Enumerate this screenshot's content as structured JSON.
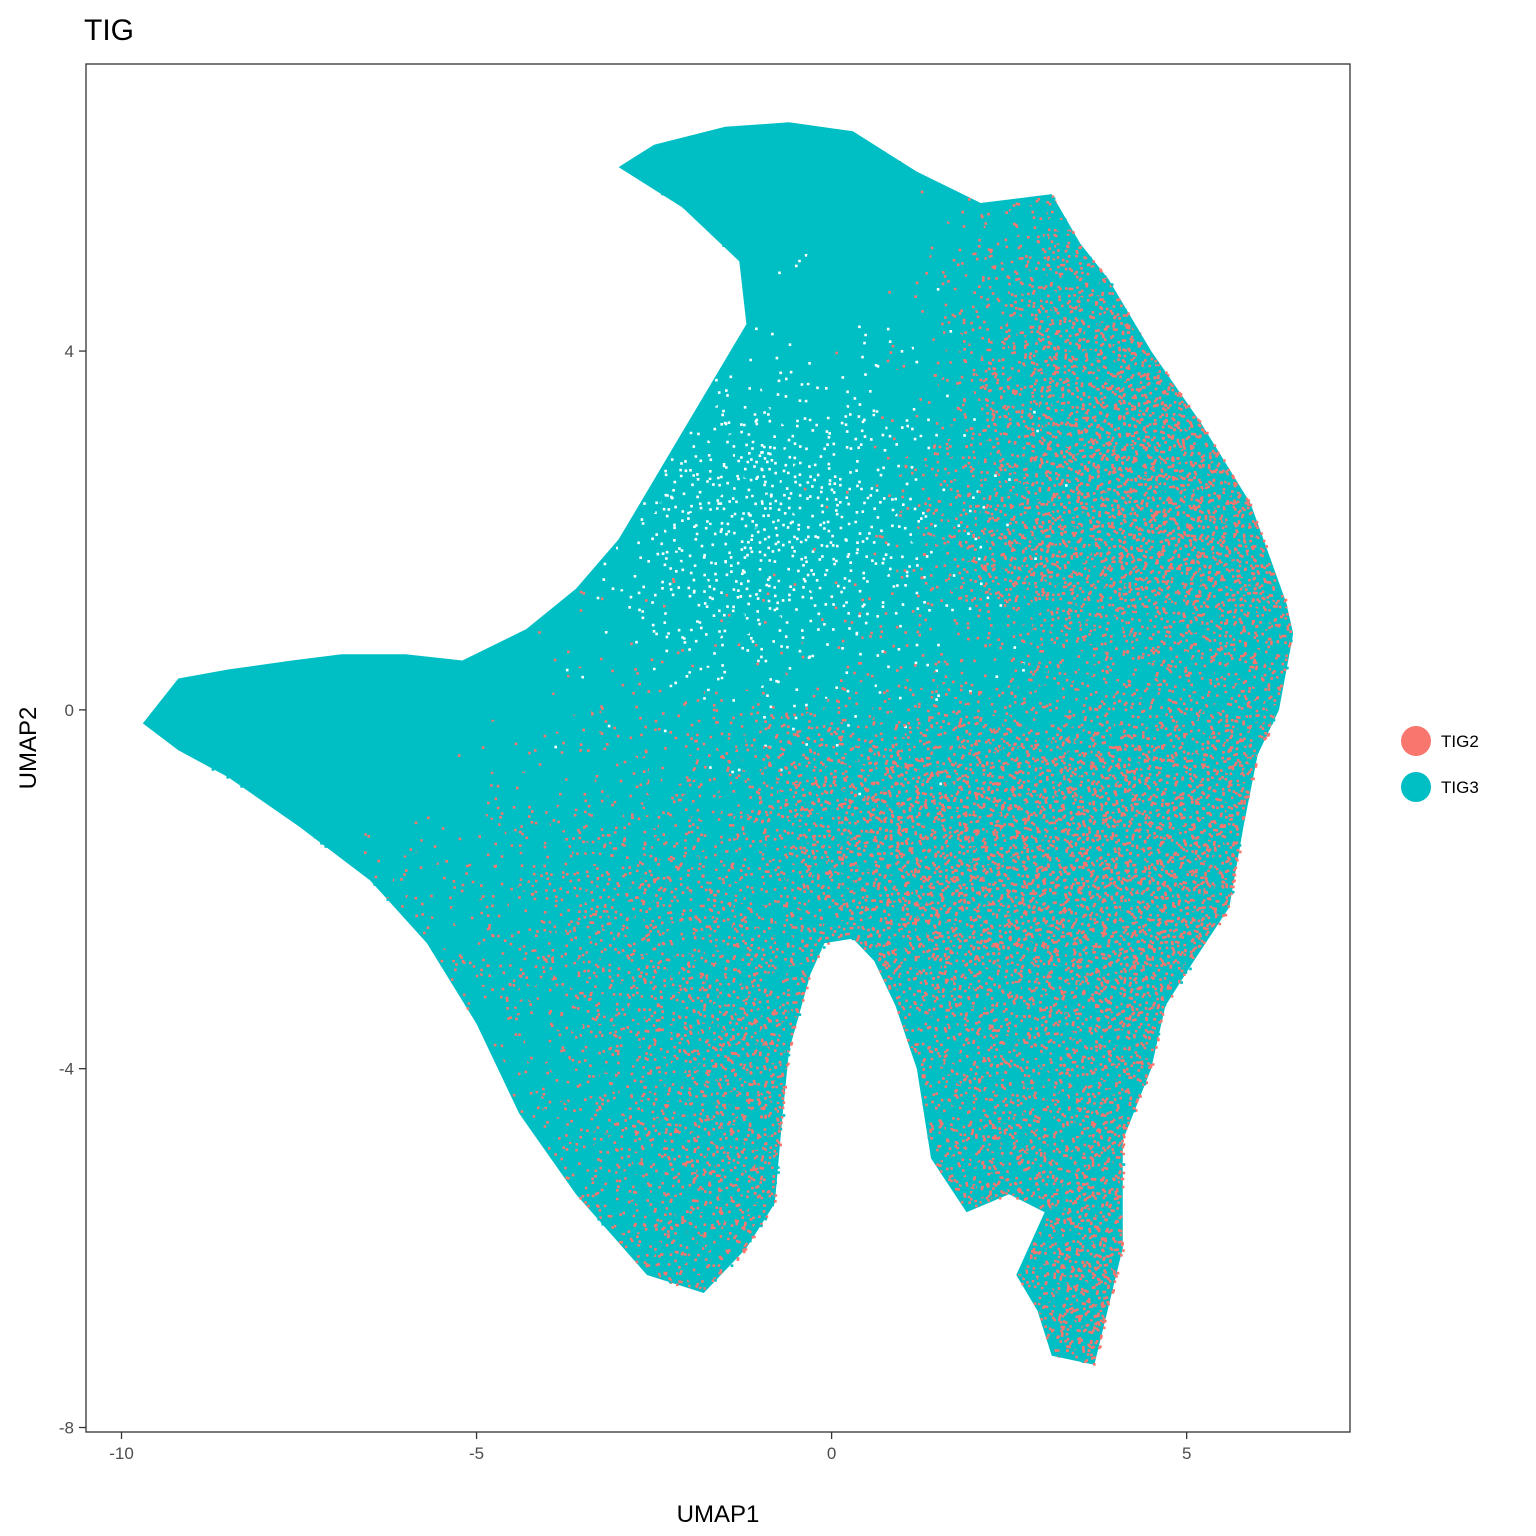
{
  "chart_data": {
    "type": "scatter",
    "title": "TIG",
    "xlabel": "UMAP1",
    "ylabel": "UMAP2",
    "xlim": [
      -10.5,
      7.3
    ],
    "ylim": [
      -8.05,
      7.2
    ],
    "x_ticks": [
      {
        "value": -10,
        "label": "-10"
      },
      {
        "value": -5,
        "label": "-5"
      },
      {
        "value": 0,
        "label": "0"
      },
      {
        "value": 5,
        "label": "5"
      }
    ],
    "y_ticks": [
      {
        "value": -8,
        "label": "-8"
      },
      {
        "value": -4,
        "label": "-4"
      },
      {
        "value": 0,
        "label": "0"
      },
      {
        "value": 4,
        "label": "4"
      }
    ],
    "grid": false,
    "legend_position": "right",
    "point_cloud_outline": [
      [
        -9.7,
        -0.15
      ],
      [
        -9.2,
        0.35
      ],
      [
        -8.5,
        0.45
      ],
      [
        -7.6,
        0.55
      ],
      [
        -6.9,
        0.62
      ],
      [
        -6.0,
        0.62
      ],
      [
        -5.2,
        0.55
      ],
      [
        -4.3,
        0.9
      ],
      [
        -3.6,
        1.35
      ],
      [
        -3.0,
        1.9
      ],
      [
        -2.4,
        2.7
      ],
      [
        -1.8,
        3.5
      ],
      [
        -1.2,
        4.3
      ],
      [
        -1.3,
        5.0
      ],
      [
        -2.1,
        5.6
      ],
      [
        -3.0,
        6.05
      ],
      [
        -2.5,
        6.3
      ],
      [
        -1.5,
        6.5
      ],
      [
        -0.6,
        6.55
      ],
      [
        0.3,
        6.45
      ],
      [
        1.2,
        6.0
      ],
      [
        2.1,
        5.65
      ],
      [
        3.1,
        5.75
      ],
      [
        3.5,
        5.2
      ],
      [
        3.9,
        4.8
      ],
      [
        4.5,
        4.0
      ],
      [
        5.2,
        3.2
      ],
      [
        5.9,
        2.3
      ],
      [
        6.4,
        1.2
      ],
      [
        6.5,
        0.85
      ],
      [
        6.3,
        0.0
      ],
      [
        6.0,
        -0.5
      ],
      [
        5.8,
        -1.3
      ],
      [
        5.6,
        -2.2
      ],
      [
        5.1,
        -2.8
      ],
      [
        4.7,
        -3.3
      ],
      [
        4.5,
        -4.0
      ],
      [
        4.1,
        -4.8
      ],
      [
        4.1,
        -6.0
      ],
      [
        3.7,
        -7.3
      ],
      [
        3.1,
        -7.2
      ],
      [
        2.9,
        -6.7
      ],
      [
        2.6,
        -6.3
      ],
      [
        3.0,
        -5.6
      ],
      [
        2.5,
        -5.4
      ],
      [
        1.9,
        -5.6
      ],
      [
        1.4,
        -5.0
      ],
      [
        1.2,
        -4.0
      ],
      [
        0.9,
        -3.3
      ],
      [
        0.6,
        -2.8
      ],
      [
        0.3,
        -2.55
      ],
      [
        -0.1,
        -2.6
      ],
      [
        -0.3,
        -2.95
      ],
      [
        -0.6,
        -3.8
      ],
      [
        -0.7,
        -4.6
      ],
      [
        -0.8,
        -5.5
      ],
      [
        -1.2,
        -6.0
      ],
      [
        -1.8,
        -6.5
      ],
      [
        -2.6,
        -6.3
      ],
      [
        -3.6,
        -5.4
      ],
      [
        -4.4,
        -4.5
      ],
      [
        -5.0,
        -3.5
      ],
      [
        -5.7,
        -2.6
      ],
      [
        -6.5,
        -1.9
      ],
      [
        -7.5,
        -1.3
      ],
      [
        -8.5,
        -0.75
      ],
      [
        -9.2,
        -0.45
      ]
    ],
    "series": [
      {
        "name": "TIG2",
        "color": "#F8766D",
        "regions": [
          {
            "cx": 4.6,
            "cy": 2.5,
            "rx": 1.4,
            "ry": 2.0,
            "density": 0.72
          },
          {
            "cx": 5.8,
            "cy": 1.0,
            "rx": 0.6,
            "ry": 1.3,
            "density": 0.65
          },
          {
            "cx": 3.2,
            "cy": -2.2,
            "rx": 2.0,
            "ry": 1.6,
            "density": 0.7
          },
          {
            "cx": 3.9,
            "cy": -5.6,
            "rx": 0.5,
            "ry": 1.5,
            "density": 0.72
          },
          {
            "cx": 2.6,
            "cy": -4.5,
            "rx": 0.9,
            "ry": 1.0,
            "density": 0.55
          },
          {
            "cx": -1.9,
            "cy": -4.2,
            "rx": 1.3,
            "ry": 1.9,
            "density": 0.42
          },
          {
            "cx": -2.6,
            "cy": -2.3,
            "rx": 1.5,
            "ry": 0.8,
            "density": 0.38
          },
          {
            "cx": 1.0,
            "cy": -1.3,
            "rx": 1.5,
            "ry": 0.8,
            "density": 0.45
          },
          {
            "cx": 3.4,
            "cy": 4.2,
            "rx": 0.9,
            "ry": 0.9,
            "density": 0.5
          }
        ]
      },
      {
        "name": "TIG3",
        "color": "#00BFC4",
        "regions": [
          {
            "cx": -0.4,
            "cy": 5.2,
            "rx": 2.4,
            "ry": 1.4,
            "density": 0.85
          },
          {
            "cx": -7.5,
            "cy": -0.3,
            "rx": 2.3,
            "ry": 0.8,
            "density": 0.85
          },
          {
            "cx": -4.0,
            "cy": -1.8,
            "rx": 2.0,
            "ry": 1.4,
            "density": 0.75
          },
          {
            "cx": -3.2,
            "cy": -4.6,
            "rx": 1.2,
            "ry": 1.6,
            "density": 0.7
          },
          {
            "cx": 2.5,
            "cy": 0.5,
            "rx": 4.0,
            "ry": 0.45,
            "density": 0.8
          },
          {
            "cx": -1.6,
            "cy": 2.2,
            "rx": 1.5,
            "ry": 1.0,
            "density": 0.6
          },
          {
            "cx": 2.3,
            "cy": -4.0,
            "rx": 1.0,
            "ry": 0.8,
            "density": 0.55
          }
        ]
      }
    ]
  }
}
